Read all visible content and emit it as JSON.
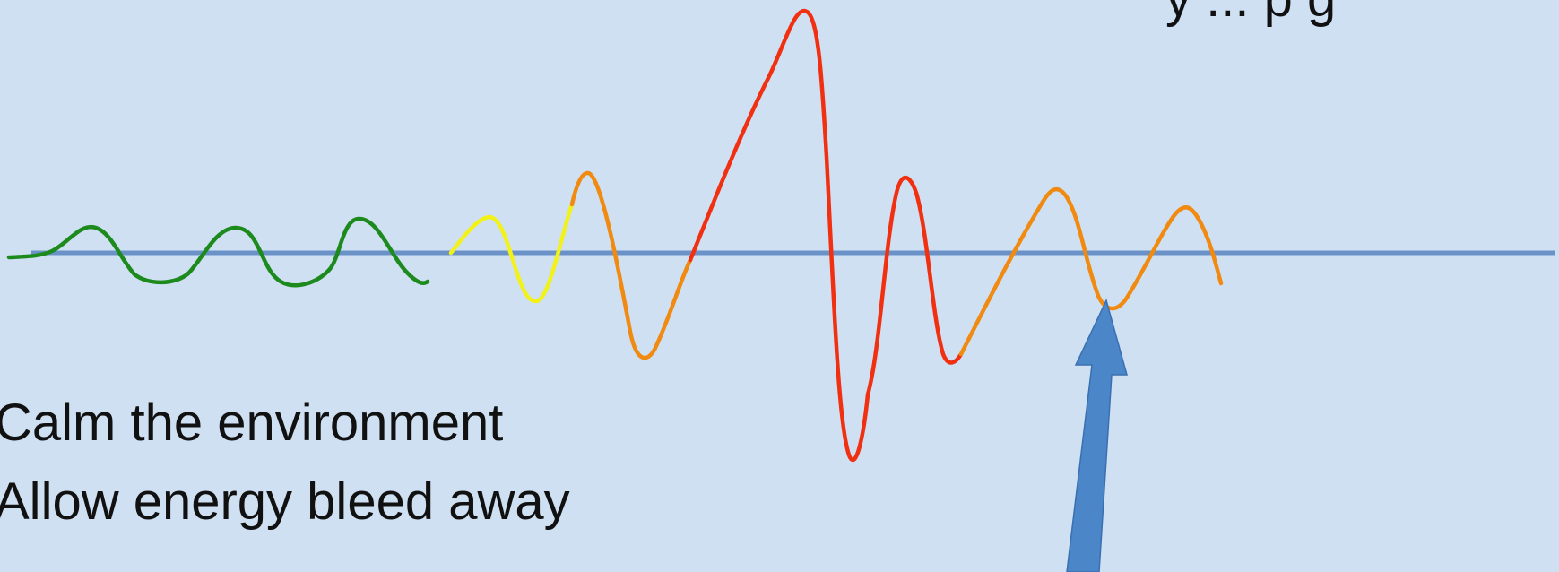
{
  "texts": {
    "top_partial": "y ... p g",
    "line1": "Calm the environment",
    "line2": "Allow energy bleed away"
  },
  "colors": {
    "background": "#cfe0f3",
    "baseline": "#6a92c8",
    "arrow": "#4a86c8",
    "arrow_edge": "#3a70b0",
    "calm": "#1d8a1d",
    "rising": "#f2f21a",
    "elevated": "#f08a10",
    "peak": "#f03010",
    "text": "#111111"
  },
  "diagram": {
    "type": "escalation-wave",
    "segment_stages": [
      "calm",
      "rising",
      "elevated",
      "peak",
      "elevated"
    ],
    "arrow_icon": "up-arrow-icon"
  }
}
